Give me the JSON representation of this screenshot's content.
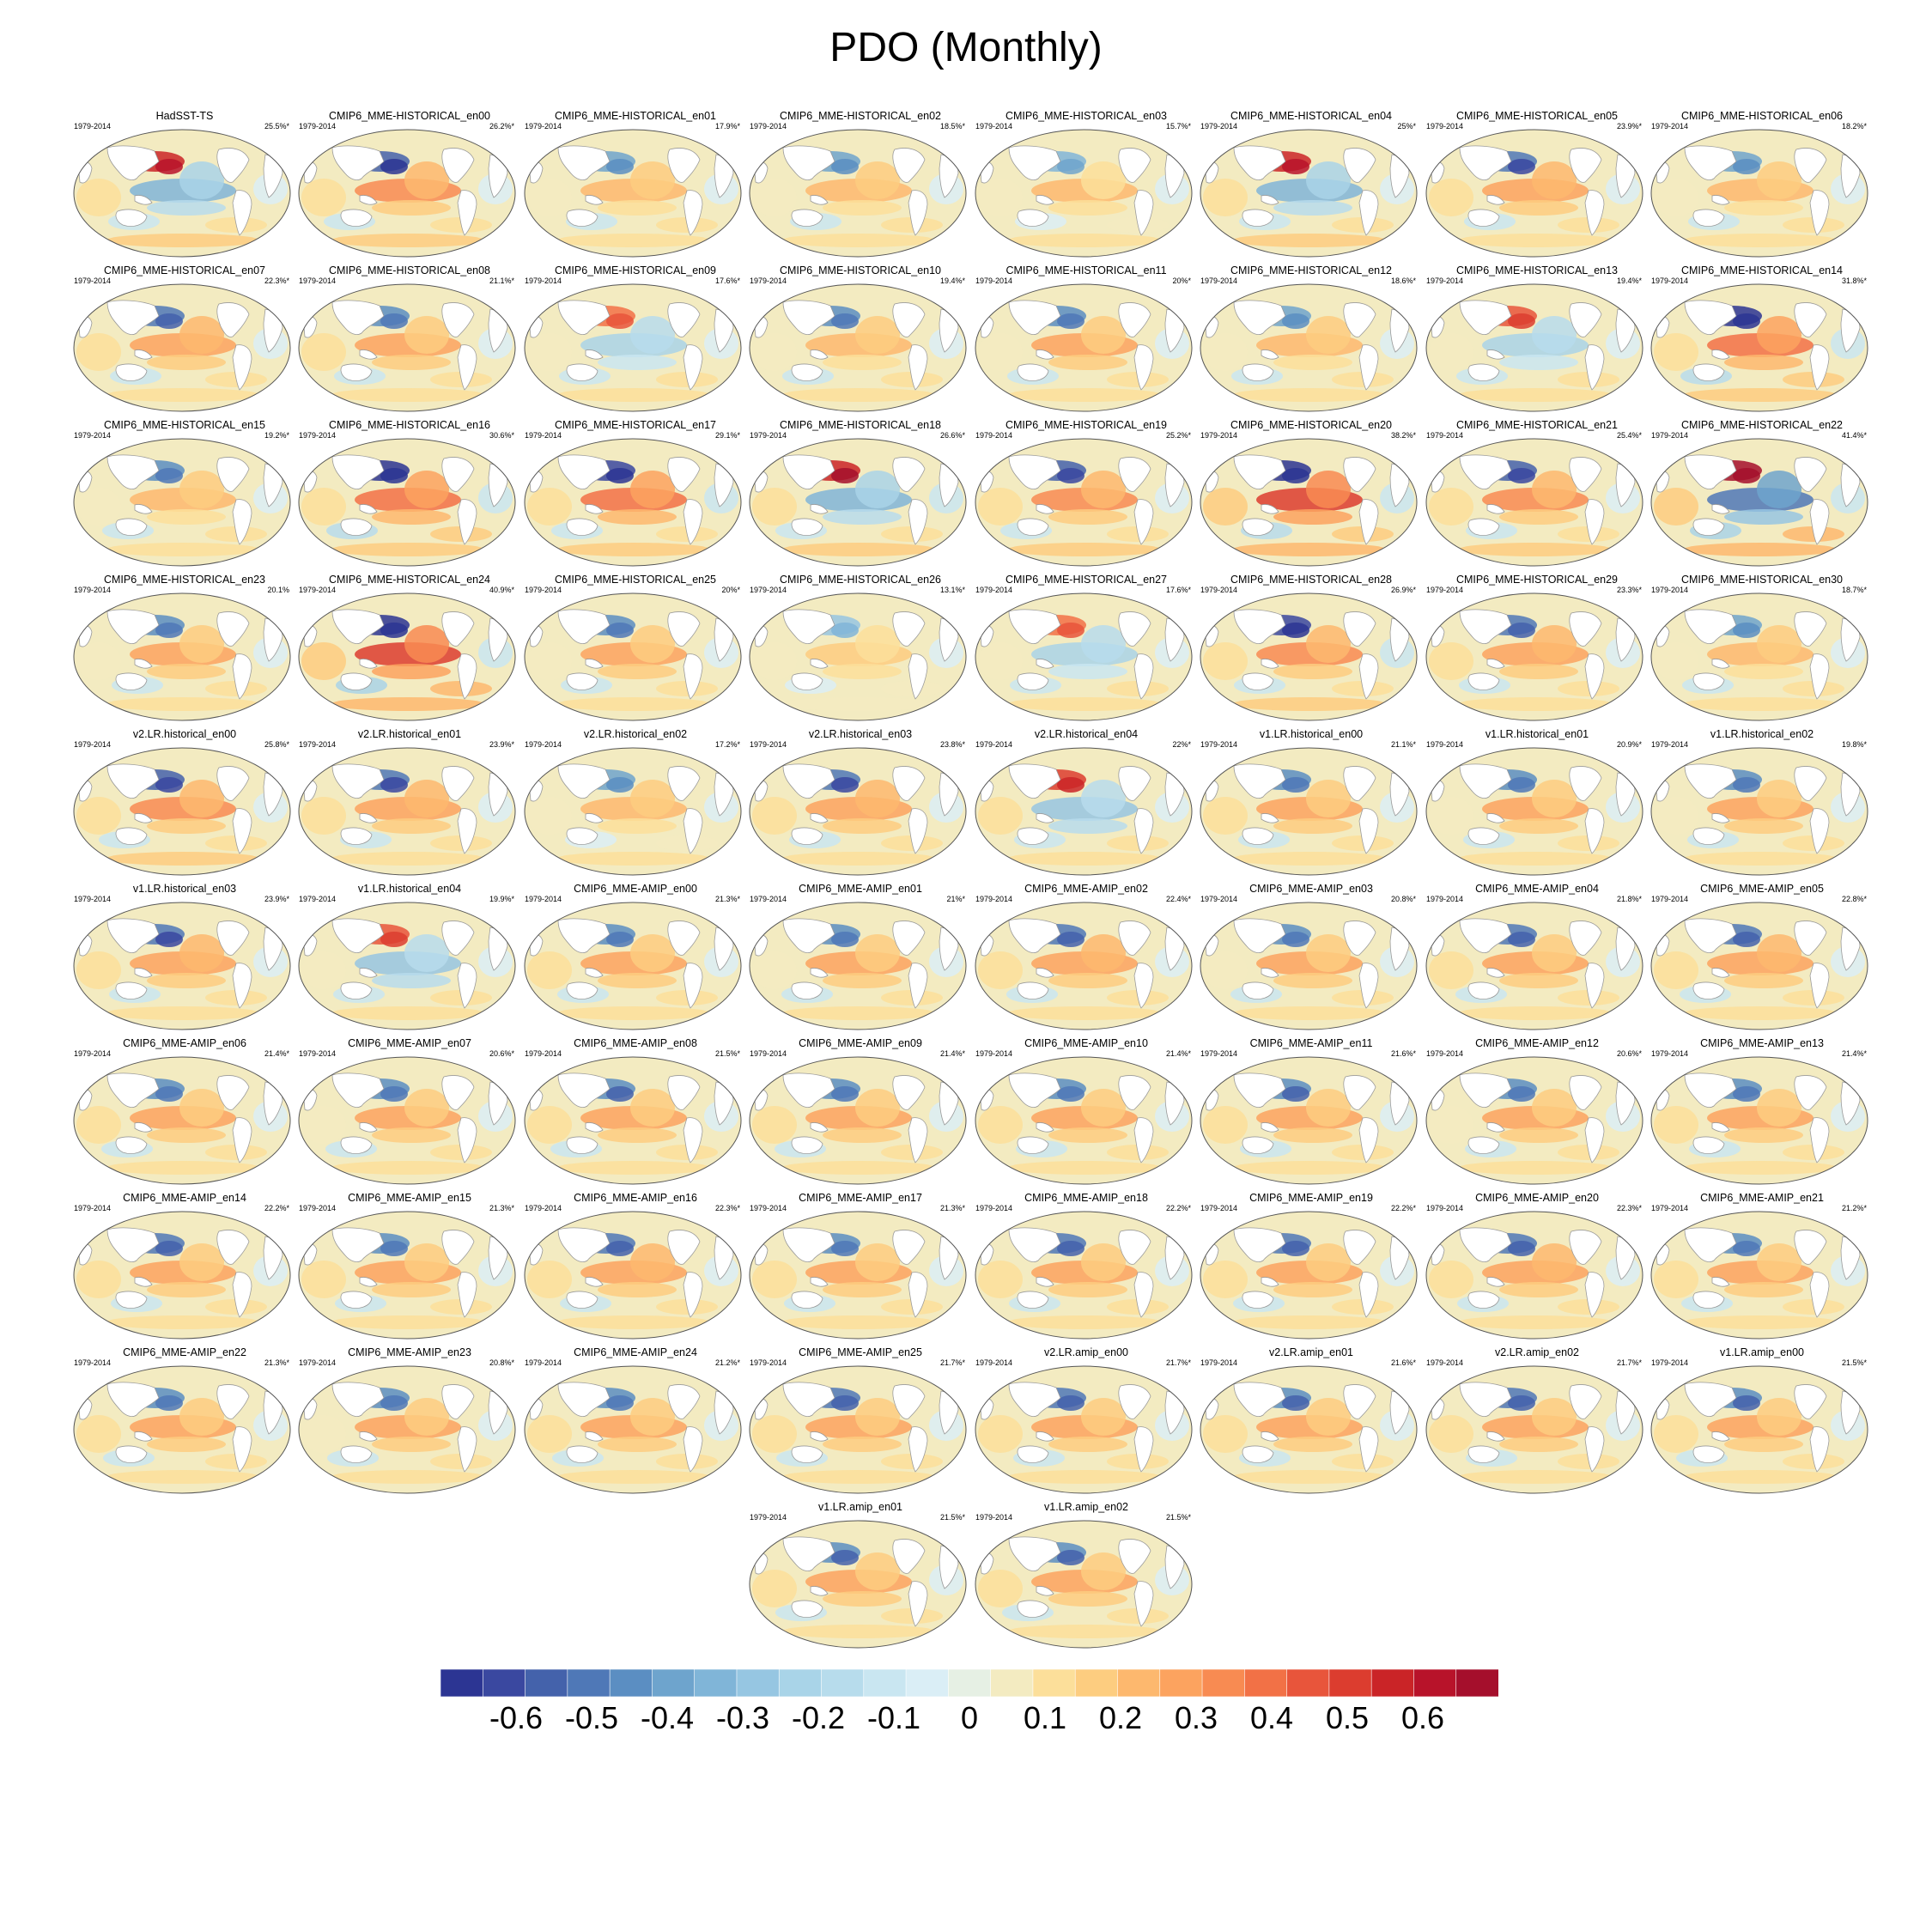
{
  "title": "PDO (Monthly)",
  "chart_data": {
    "type": "heatmap",
    "title": "PDO (Monthly)",
    "panels": [
      {
        "name": "HadSST-TS",
        "period": "1979-2014",
        "percent": "25.5%*"
      },
      {
        "name": "CMIP6_MME-HISTORICAL_en00",
        "period": "1979-2014",
        "percent": "26.2%*"
      },
      {
        "name": "CMIP6_MME-HISTORICAL_en01",
        "period": "1979-2014",
        "percent": "17.9%*"
      },
      {
        "name": "CMIP6_MME-HISTORICAL_en02",
        "period": "1979-2014",
        "percent": "18.5%*"
      },
      {
        "name": "CMIP6_MME-HISTORICAL_en03",
        "period": "1979-2014",
        "percent": "15.7%*"
      },
      {
        "name": "CMIP6_MME-HISTORICAL_en04",
        "period": "1979-2014",
        "percent": "25%*"
      },
      {
        "name": "CMIP6_MME-HISTORICAL_en05",
        "period": "1979-2014",
        "percent": "23.9%*"
      },
      {
        "name": "CMIP6_MME-HISTORICAL_en06",
        "period": "1979-2014",
        "percent": "18.2%*"
      },
      {
        "name": "CMIP6_MME-HISTORICAL_en07",
        "period": "1979-2014",
        "percent": "22.3%*"
      },
      {
        "name": "CMIP6_MME-HISTORICAL_en08",
        "period": "1979-2014",
        "percent": "21.1%*"
      },
      {
        "name": "CMIP6_MME-HISTORICAL_en09",
        "period": "1979-2014",
        "percent": "17.6%*"
      },
      {
        "name": "CMIP6_MME-HISTORICAL_en10",
        "period": "1979-2014",
        "percent": "19.4%*"
      },
      {
        "name": "CMIP6_MME-HISTORICAL_en11",
        "period": "1979-2014",
        "percent": "20%*"
      },
      {
        "name": "CMIP6_MME-HISTORICAL_en12",
        "period": "1979-2014",
        "percent": "18.6%*"
      },
      {
        "name": "CMIP6_MME-HISTORICAL_en13",
        "period": "1979-2014",
        "percent": "19.4%*"
      },
      {
        "name": "CMIP6_MME-HISTORICAL_en14",
        "period": "1979-2014",
        "percent": "31.8%*"
      },
      {
        "name": "CMIP6_MME-HISTORICAL_en15",
        "period": "1979-2014",
        "percent": "19.2%*"
      },
      {
        "name": "CMIP6_MME-HISTORICAL_en16",
        "period": "1979-2014",
        "percent": "30.6%*"
      },
      {
        "name": "CMIP6_MME-HISTORICAL_en17",
        "period": "1979-2014",
        "percent": "29.1%*"
      },
      {
        "name": "CMIP6_MME-HISTORICAL_en18",
        "period": "1979-2014",
        "percent": "26.6%*"
      },
      {
        "name": "CMIP6_MME-HISTORICAL_en19",
        "period": "1979-2014",
        "percent": "25.2%*"
      },
      {
        "name": "CMIP6_MME-HISTORICAL_en20",
        "period": "1979-2014",
        "percent": "38.2%*"
      },
      {
        "name": "CMIP6_MME-HISTORICAL_en21",
        "period": "1979-2014",
        "percent": "25.4%*"
      },
      {
        "name": "CMIP6_MME-HISTORICAL_en22",
        "period": "1979-2014",
        "percent": "41.4%*"
      },
      {
        "name": "CMIP6_MME-HISTORICAL_en23",
        "period": "1979-2014",
        "percent": "20.1%"
      },
      {
        "name": "CMIP6_MME-HISTORICAL_en24",
        "period": "1979-2014",
        "percent": "40.9%*"
      },
      {
        "name": "CMIP6_MME-HISTORICAL_en25",
        "period": "1979-2014",
        "percent": "20%*"
      },
      {
        "name": "CMIP6_MME-HISTORICAL_en26",
        "period": "1979-2014",
        "percent": "13.1%*"
      },
      {
        "name": "CMIP6_MME-HISTORICAL_en27",
        "period": "1979-2014",
        "percent": "17.6%*"
      },
      {
        "name": "CMIP6_MME-HISTORICAL_en28",
        "period": "1979-2014",
        "percent": "26.9%*"
      },
      {
        "name": "CMIP6_MME-HISTORICAL_en29",
        "period": "1979-2014",
        "percent": "23.3%*"
      },
      {
        "name": "CMIP6_MME-HISTORICAL_en30",
        "period": "1979-2014",
        "percent": "18.7%*"
      },
      {
        "name": "v2.LR.historical_en00",
        "period": "1979-2014",
        "percent": "25.8%*"
      },
      {
        "name": "v2.LR.historical_en01",
        "period": "1979-2014",
        "percent": "23.9%*"
      },
      {
        "name": "v2.LR.historical_en02",
        "period": "1979-2014",
        "percent": "17.2%*"
      },
      {
        "name": "v2.LR.historical_en03",
        "period": "1979-2014",
        "percent": "23.8%*"
      },
      {
        "name": "v2.LR.historical_en04",
        "period": "1979-2014",
        "percent": "22%*"
      },
      {
        "name": "v1.LR.historical_en00",
        "period": "1979-2014",
        "percent": "21.1%*"
      },
      {
        "name": "v1.LR.historical_en01",
        "period": "1979-2014",
        "percent": "20.9%*"
      },
      {
        "name": "v1.LR.historical_en02",
        "period": "1979-2014",
        "percent": "19.8%*"
      },
      {
        "name": "v1.LR.historical_en03",
        "period": "1979-2014",
        "percent": "23.9%*"
      },
      {
        "name": "v1.LR.historical_en04",
        "period": "1979-2014",
        "percent": "19.9%*"
      },
      {
        "name": "CMIP6_MME-AMIP_en00",
        "period": "1979-2014",
        "percent": "21.3%*"
      },
      {
        "name": "CMIP6_MME-AMIP_en01",
        "period": "1979-2014",
        "percent": "21%*"
      },
      {
        "name": "CMIP6_MME-AMIP_en02",
        "period": "1979-2014",
        "percent": "22.4%*"
      },
      {
        "name": "CMIP6_MME-AMIP_en03",
        "period": "1979-2014",
        "percent": "20.8%*"
      },
      {
        "name": "CMIP6_MME-AMIP_en04",
        "period": "1979-2014",
        "percent": "21.8%*"
      },
      {
        "name": "CMIP6_MME-AMIP_en05",
        "period": "1979-2014",
        "percent": "22.8%*"
      },
      {
        "name": "CMIP6_MME-AMIP_en06",
        "period": "1979-2014",
        "percent": "21.4%*"
      },
      {
        "name": "CMIP6_MME-AMIP_en07",
        "period": "1979-2014",
        "percent": "20.6%*"
      },
      {
        "name": "CMIP6_MME-AMIP_en08",
        "period": "1979-2014",
        "percent": "21.5%*"
      },
      {
        "name": "CMIP6_MME-AMIP_en09",
        "period": "1979-2014",
        "percent": "21.4%*"
      },
      {
        "name": "CMIP6_MME-AMIP_en10",
        "period": "1979-2014",
        "percent": "21.4%*"
      },
      {
        "name": "CMIP6_MME-AMIP_en11",
        "period": "1979-2014",
        "percent": "21.6%*"
      },
      {
        "name": "CMIP6_MME-AMIP_en12",
        "period": "1979-2014",
        "percent": "20.6%*"
      },
      {
        "name": "CMIP6_MME-AMIP_en13",
        "period": "1979-2014",
        "percent": "21.4%*"
      },
      {
        "name": "CMIP6_MME-AMIP_en14",
        "period": "1979-2014",
        "percent": "22.2%*"
      },
      {
        "name": "CMIP6_MME-AMIP_en15",
        "period": "1979-2014",
        "percent": "21.3%*"
      },
      {
        "name": "CMIP6_MME-AMIP_en16",
        "period": "1979-2014",
        "percent": "22.3%*"
      },
      {
        "name": "CMIP6_MME-AMIP_en17",
        "period": "1979-2014",
        "percent": "21.3%*"
      },
      {
        "name": "CMIP6_MME-AMIP_en18",
        "period": "1979-2014",
        "percent": "22.2%*"
      },
      {
        "name": "CMIP6_MME-AMIP_en19",
        "period": "1979-2014",
        "percent": "22.2%*"
      },
      {
        "name": "CMIP6_MME-AMIP_en20",
        "period": "1979-2014",
        "percent": "22.3%*"
      },
      {
        "name": "CMIP6_MME-AMIP_en21",
        "period": "1979-2014",
        "percent": "21.2%*"
      },
      {
        "name": "CMIP6_MME-AMIP_en22",
        "period": "1979-2014",
        "percent": "21.3%*"
      },
      {
        "name": "CMIP6_MME-AMIP_en23",
        "period": "1979-2014",
        "percent": "20.8%*"
      },
      {
        "name": "CMIP6_MME-AMIP_en24",
        "period": "1979-2014",
        "percent": "21.2%*"
      },
      {
        "name": "CMIP6_MME-AMIP_en25",
        "period": "1979-2014",
        "percent": "21.7%*"
      },
      {
        "name": "v2.LR.amip_en00",
        "period": "1979-2014",
        "percent": "21.7%*"
      },
      {
        "name": "v2.LR.amip_en01",
        "period": "1979-2014",
        "percent": "21.6%*"
      },
      {
        "name": "v2.LR.amip_en02",
        "period": "1979-2014",
        "percent": "21.7%*"
      },
      {
        "name": "v1.LR.amip_en00",
        "period": "1979-2014",
        "percent": "21.5%*"
      },
      {
        "name": "v1.LR.amip_en01",
        "period": "1979-2014",
        "percent": "21.5%*"
      },
      {
        "name": "v1.LR.amip_en02",
        "period": "1979-2014",
        "percent": "21.5%*"
      }
    ],
    "colorbar": {
      "min": -0.7,
      "max": 0.7,
      "step": 0.05,
      "tick_labels": [
        "-0.6",
        "-0.5",
        "-0.4",
        "-0.3",
        "-0.2",
        "-0.1",
        "0",
        "0.1",
        "0.2",
        "0.3",
        "0.4",
        "0.5",
        "0.6"
      ],
      "colors": [
        "#2c3593",
        "#3a48a0",
        "#4462ab",
        "#4f78b7",
        "#5b8ec2",
        "#6ea4cd",
        "#80b5d8",
        "#96c6e2",
        "#a9d4e8",
        "#b7dcec",
        "#c9e6f1",
        "#daeef6",
        "#e6f0e4",
        "#f3ebc1",
        "#fcdf9a",
        "#fdcd80",
        "#fdb86e",
        "#fca35f",
        "#f88b52",
        "#f27146",
        "#e8553b",
        "#dc3d2f",
        "#ca2427",
        "#b8132a",
        "#a50f2c"
      ]
    },
    "colors": {
      "land": "#ffffff",
      "coast": "#9a9a9a",
      "outline": "#555555"
    }
  }
}
